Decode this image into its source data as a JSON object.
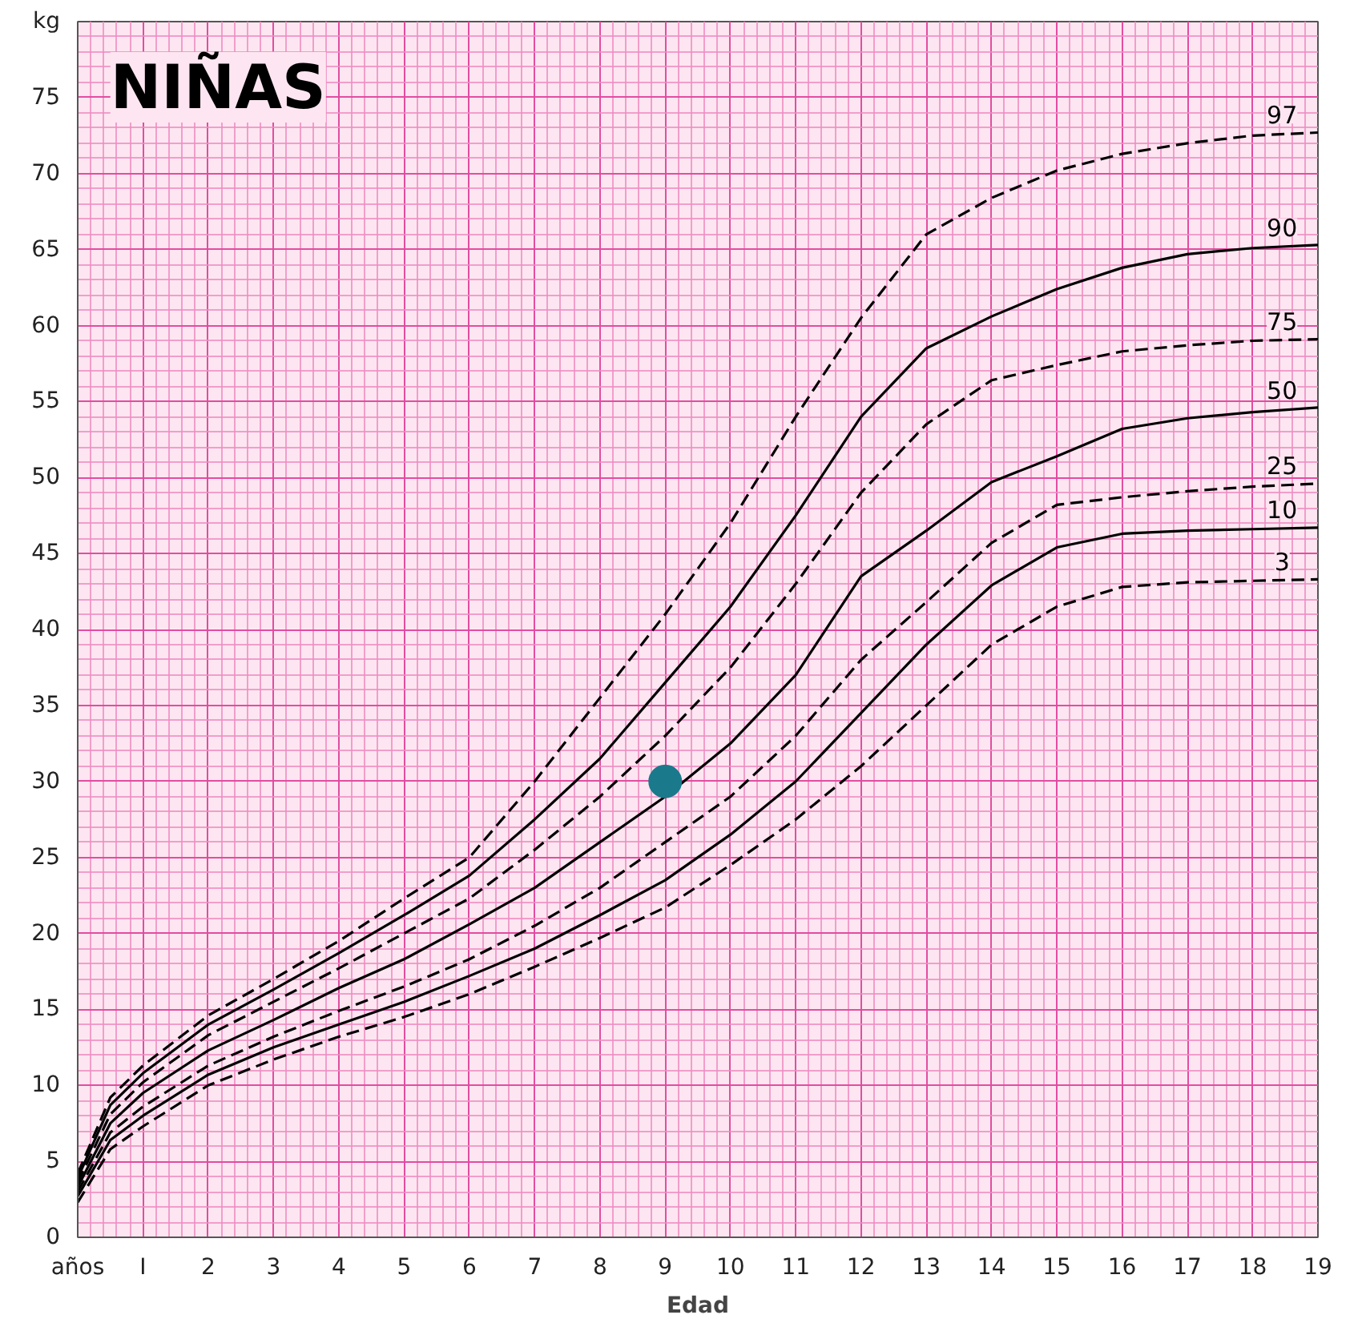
{
  "chart_data": {
    "type": "line",
    "title": "NIÑAS",
    "xlabel": "Edad",
    "x": [
      0,
      0.5,
      1,
      2,
      3,
      4,
      5,
      6,
      7,
      8,
      9,
      10,
      11,
      12,
      13,
      14,
      15,
      16,
      17,
      18,
      19
    ],
    "xlim": [
      0,
      19
    ],
    "ylim": [
      0,
      80
    ],
    "xticks": [
      {
        "value": 0,
        "label": "años"
      },
      {
        "value": 1,
        "label": "I"
      },
      2,
      3,
      4,
      5,
      6,
      7,
      8,
      9,
      10,
      11,
      12,
      13,
      14,
      15,
      16,
      17,
      18,
      19
    ],
    "yticks": [
      0,
      5,
      10,
      15,
      20,
      25,
      30,
      35,
      40,
      45,
      50,
      55,
      60,
      65,
      70,
      75,
      {
        "value": 80,
        "label": "kg"
      }
    ],
    "grid": true,
    "marker": "none",
    "series": [
      {
        "name": "97",
        "color": "#000000",
        "line_style": "dashed",
        "values": [
          4.2,
          9.2,
          11.3,
          14.6,
          17.0,
          19.5,
          22.3,
          25,
          30,
          35.5,
          41,
          47,
          54,
          60.5,
          66,
          68.4,
          70.2,
          71.3,
          72,
          72.5,
          72.7
        ]
      },
      {
        "name": "90",
        "color": "#000000",
        "line_style": "solid",
        "values": [
          3.9,
          8.7,
          10.8,
          14.0,
          16.3,
          18.7,
          21.2,
          23.8,
          27.5,
          31.5,
          36.5,
          41.5,
          47.5,
          54,
          58.5,
          60.6,
          62.4,
          63.8,
          64.7,
          65.1,
          65.3
        ]
      },
      {
        "name": "75",
        "color": "#000000",
        "line_style": "dashed",
        "values": [
          3.6,
          8.1,
          10.2,
          13.3,
          15.5,
          17.7,
          20.0,
          22.3,
          25.5,
          29,
          33,
          37.5,
          43,
          49,
          53.5,
          56.4,
          57.4,
          58.3,
          58.7,
          59.0,
          59.1
        ]
      },
      {
        "name": "50",
        "color": "#000000",
        "line_style": "solid",
        "values": [
          3.3,
          7.5,
          9.5,
          12.3,
          14.3,
          16.4,
          18.3,
          20.6,
          23,
          26,
          29,
          32.5,
          37,
          43.5,
          46.5,
          49.7,
          51.4,
          53.2,
          53.9,
          54.3,
          54.6
        ]
      },
      {
        "name": "25",
        "color": "#000000",
        "line_style": "dashed",
        "values": [
          3.0,
          6.9,
          8.6,
          11.3,
          13.2,
          14.9,
          16.5,
          18.3,
          20.5,
          23,
          26,
          29,
          33,
          38,
          41.8,
          45.7,
          48.2,
          48.7,
          49.1,
          49.4,
          49.6
        ]
      },
      {
        "name": "10",
        "color": "#000000",
        "line_style": "solid",
        "values": [
          2.7,
          6.4,
          8.0,
          10.7,
          12.5,
          14.0,
          15.5,
          17.2,
          19,
          21.2,
          23.5,
          26.5,
          30,
          34.5,
          39,
          42.9,
          45.4,
          46.3,
          46.5,
          46.6,
          46.7
        ]
      },
      {
        "name": "3",
        "color": "#000000",
        "line_style": "dashed",
        "values": [
          2.3,
          5.8,
          7.3,
          10.0,
          11.7,
          13.2,
          14.5,
          16.0,
          17.8,
          19.7,
          21.7,
          24.5,
          27.5,
          31,
          35,
          39,
          41.5,
          42.8,
          43.1,
          43.2,
          43.3
        ]
      },
      {
        "type": "scatter",
        "marker": "circle",
        "color": "#1a7a8c",
        "x": [
          9
        ],
        "values": [
          30
        ]
      }
    ]
  }
}
